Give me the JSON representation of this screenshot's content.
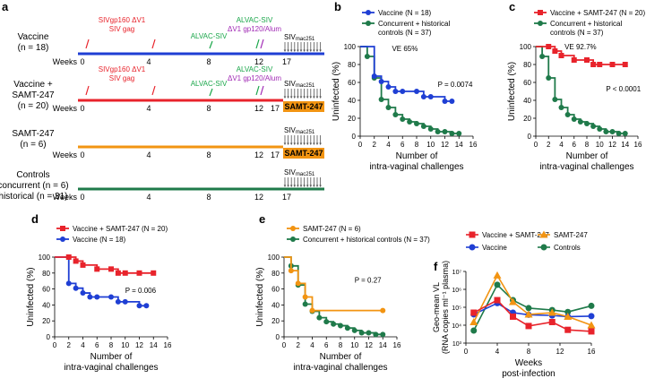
{
  "colors": {
    "blue": "#1f3fd4",
    "green": "#1f7a4a",
    "red": "#e8232b",
    "orange": "#f29412",
    "purple": "#a12bb5",
    "tlgreen": "#1aa64a"
  },
  "panel_a": {
    "panel_label": "a",
    "weeks_label": "Weeks",
    "groups": [
      {
        "name": "Vaccine",
        "n": "(n = 18)",
        "weeks": [
          "0",
          "4",
          "8",
          "12",
          "17"
        ]
      },
      {
        "name": "Vaccine +",
        "name2": "SAMT-247",
        "n": "(n = 20)",
        "weeks": [
          "0",
          "4",
          "8",
          "12",
          "17"
        ]
      },
      {
        "name": "SAMT-247",
        "n": "(n = 6)",
        "weeks": [
          "0",
          "4",
          "8",
          "12",
          "17"
        ]
      },
      {
        "name": "Controls",
        "name2": "concurrent (n = 6)",
        "name3": "historical (n = 31)",
        "weeks": [
          "0",
          "4",
          "8",
          "12",
          "17"
        ]
      }
    ],
    "prime_line1": "SIVgp160 ΔV1",
    "prime_line2": "SIV gag",
    "alvac1": "ALVAC-SIV",
    "alvac2": "ALVAC-SIV",
    "boost": "ΔV1 gp120/Alum",
    "challenge": "SIV",
    "challenge_sub": "mac251",
    "samt_box": "SAMT-247"
  },
  "chart_data": [
    {
      "id": "b",
      "panel_label": "b",
      "type": "line",
      "title": "",
      "xlabel": "Number of\nintra-vaginal challenges",
      "xlabel1": "Number of",
      "xlabel2": "intra-vaginal challenges",
      "ylabel": "Uninfected (%)",
      "xlim": [
        0,
        16
      ],
      "ylim": [
        0,
        100
      ],
      "xticks": [
        "0",
        "2",
        "4",
        "6",
        "8",
        "10",
        "12",
        "14",
        "16"
      ],
      "yticks": [
        "0",
        "20",
        "40",
        "60",
        "80",
        "100"
      ],
      "legend": [
        "Vaccine (N = 18)",
        "Concurrent + historical",
        "controls (N = 37)"
      ],
      "annotations": [
        "VE 65%",
        "P = 0.0074"
      ],
      "series": [
        {
          "name": "Vaccine (N = 18)",
          "color": "#1f3fd4",
          "x": [
            0,
            1,
            2,
            3,
            4,
            5,
            6,
            7,
            8,
            9,
            10,
            11,
            12,
            13
          ],
          "y": [
            100,
            100,
            67,
            61,
            55,
            50,
            50,
            50,
            50,
            44,
            44,
            44,
            39,
            39
          ]
        },
        {
          "name": "Concurrent + historical controls (N = 37)",
          "color": "#1f7a4a",
          "x": [
            0,
            1,
            2,
            3,
            4,
            5,
            6,
            7,
            8,
            9,
            10,
            11,
            12,
            13,
            14
          ],
          "y": [
            100,
            89,
            65,
            41,
            32,
            24,
            19,
            16,
            14,
            11,
            8,
            5,
            5,
            3,
            3
          ]
        }
      ]
    },
    {
      "id": "c",
      "panel_label": "c",
      "type": "line",
      "title": "",
      "xlabel1": "Number of",
      "xlabel2": "intra-vaginal challenges",
      "ylabel": "Uninfected (%)",
      "xlim": [
        0,
        16
      ],
      "ylim": [
        0,
        100
      ],
      "xticks": [
        "0",
        "2",
        "4",
        "6",
        "8",
        "10",
        "12",
        "14",
        "16"
      ],
      "yticks": [
        "0",
        "20",
        "40",
        "60",
        "80",
        "100"
      ],
      "legend": [
        "Vaccine + SAMT-247 (N = 20)",
        "Concurrent + historical",
        "controls (N = 37)"
      ],
      "annotations": [
        "VE 92.7%",
        "P < 0.0001"
      ],
      "series": [
        {
          "name": "Vaccine + SAMT-247 (N = 20)",
          "color": "#e8232b",
          "x": [
            0,
            1,
            2,
            3,
            4,
            5,
            6,
            7,
            8,
            9,
            10,
            11,
            12,
            13,
            14
          ],
          "y": [
            100,
            100,
            100,
            95,
            90,
            90,
            85,
            85,
            85,
            80,
            80,
            80,
            80,
            80,
            80
          ]
        },
        {
          "name": "Concurrent + historical controls (N = 37)",
          "color": "#1f7a4a",
          "x": [
            0,
            1,
            2,
            3,
            4,
            5,
            6,
            7,
            8,
            9,
            10,
            11,
            12,
            13,
            14
          ],
          "y": [
            100,
            89,
            65,
            41,
            32,
            24,
            19,
            16,
            14,
            11,
            8,
            5,
            5,
            3,
            3
          ]
        }
      ]
    },
    {
      "id": "d",
      "panel_label": "d",
      "type": "line",
      "title": "",
      "xlabel1": "Number of",
      "xlabel2": "intra-vaginal challenges",
      "ylabel": "Uninfected (%)",
      "xlim": [
        0,
        16
      ],
      "ylim": [
        0,
        100
      ],
      "xticks": [
        "0",
        "2",
        "4",
        "6",
        "8",
        "10",
        "12",
        "14",
        "16"
      ],
      "yticks": [
        "0",
        "20",
        "40",
        "60",
        "80",
        "100"
      ],
      "legend": [
        "Vaccine + SAMT-247 (N = 20)",
        "Vaccine (N = 18)"
      ],
      "annotations": [
        "P = 0.006"
      ],
      "series": [
        {
          "name": "Vaccine + SAMT-247 (N = 20)",
          "color": "#e8232b",
          "x": [
            0,
            1,
            2,
            3,
            4,
            5,
            6,
            7,
            8,
            9,
            10,
            11,
            12,
            13,
            14
          ],
          "y": [
            100,
            100,
            100,
            95,
            90,
            90,
            85,
            85,
            85,
            80,
            80,
            80,
            80,
            80,
            80
          ]
        },
        {
          "name": "Vaccine (N = 18)",
          "color": "#1f3fd4",
          "x": [
            0,
            1,
            2,
            3,
            4,
            5,
            6,
            7,
            8,
            9,
            10,
            11,
            12,
            13
          ],
          "y": [
            100,
            100,
            67,
            61,
            55,
            50,
            50,
            50,
            50,
            44,
            44,
            44,
            39,
            39
          ]
        }
      ]
    },
    {
      "id": "e",
      "panel_label": "e",
      "type": "line",
      "title": "",
      "xlabel1": "Number of",
      "xlabel2": "intra-vaginal challenges",
      "ylabel": "Uninfected (%)",
      "xlim": [
        0,
        16
      ],
      "ylim": [
        0,
        100
      ],
      "xticks": [
        "0",
        "2",
        "4",
        "6",
        "8",
        "10",
        "12",
        "14",
        "16"
      ],
      "yticks": [
        "0",
        "20",
        "40",
        "60",
        "80",
        "100"
      ],
      "legend": [
        "SAMT-247 (N = 6)",
        "Concurrent + historical controls (N = 37)"
      ],
      "annotations": [
        "P = 0.27"
      ],
      "series": [
        {
          "name": "SAMT-247 (N = 6)",
          "color": "#f29412",
          "x": [
            0,
            1,
            2,
            3,
            4,
            10,
            14
          ],
          "y": [
            100,
            83,
            67,
            50,
            33,
            33,
            33
          ]
        },
        {
          "name": "Concurrent + historical controls (N = 37)",
          "color": "#1f7a4a",
          "x": [
            0,
            1,
            2,
            3,
            4,
            5,
            6,
            7,
            8,
            9,
            10,
            11,
            12,
            13,
            14
          ],
          "y": [
            100,
            89,
            65,
            41,
            32,
            24,
            19,
            16,
            14,
            11,
            8,
            5,
            5,
            3,
            3
          ]
        }
      ]
    },
    {
      "id": "f",
      "panel_label": "f",
      "type": "line",
      "title": "",
      "xlabel1": "Weeks",
      "xlabel2": "post-infection",
      "ylabel1": "Geo-mean VL",
      "ylabel2": "(RNA copies ml⁻¹ plasma)",
      "xlim": [
        0,
        16
      ],
      "ylim_log10": [
        3,
        7
      ],
      "xticks": [
        "0",
        "4",
        "8",
        "12",
        "16"
      ],
      "yticks": [
        "10³",
        "10⁴",
        "10⁵",
        "10⁶",
        "10⁷"
      ],
      "legend": [
        "Vaccine + SAMT-247",
        "SAMT-247",
        "Vaccine",
        "Controls"
      ],
      "series": [
        {
          "name": "Vaccine + SAMT-247",
          "color": "#e8232b",
          "marker": "square",
          "x": [
            1,
            4,
            6,
            8,
            11,
            13,
            16
          ],
          "y": [
            50000,
            250000,
            30000,
            9000,
            15000,
            5500,
            4500
          ]
        },
        {
          "name": "SAMT-247",
          "color": "#f29412",
          "marker": "triangle",
          "x": [
            1,
            4,
            6,
            8,
            11,
            13,
            16
          ],
          "y": [
            15000,
            6000000,
            200000,
            40000,
            50000,
            30000,
            10000
          ]
        },
        {
          "name": "Vaccine",
          "color": "#1f3fd4",
          "marker": "circle",
          "x": [
            1,
            4,
            6,
            8,
            11,
            13,
            16
          ],
          "y": [
            40000,
            170000,
            50000,
            38000,
            35000,
            30000,
            32000
          ]
        },
        {
          "name": "Controls",
          "color": "#1f7a4a",
          "marker": "circle",
          "x": [
            1,
            4,
            6,
            8,
            11,
            13,
            16
          ],
          "y": [
            5000,
            1800000,
            250000,
            90000,
            70000,
            55000,
            120000
          ]
        }
      ]
    }
  ]
}
